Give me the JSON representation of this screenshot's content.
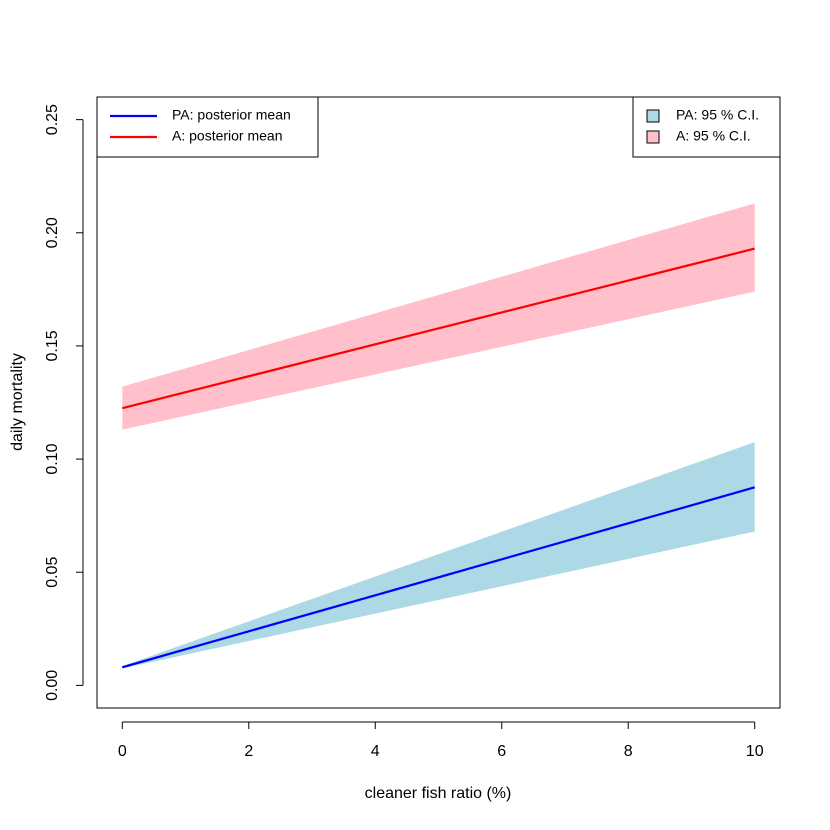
{
  "chart_data": {
    "type": "line",
    "xlabel": "cleaner fish ratio (%)",
    "ylabel": "daily mortality",
    "x": [
      0,
      2,
      4,
      6,
      8,
      10
    ],
    "series": [
      {
        "name": "PA: posterior mean",
        "color": "#0000ff",
        "values": [
          0.008,
          0.0239,
          0.0398,
          0.0557,
          0.0716,
          0.0875
        ]
      },
      {
        "name": "A: posterior mean",
        "color": "#ff0000",
        "values": [
          0.1225,
          0.1366,
          0.1507,
          0.1648,
          0.1789,
          0.193
        ]
      }
    ],
    "bands": [
      {
        "name": "PA: 95 % C.I.",
        "color": "#add8e6",
        "lower": [
          0.0075,
          0.0196,
          0.0317,
          0.0438,
          0.0559,
          0.068
        ],
        "upper": [
          0.0085,
          0.0283,
          0.0481,
          0.0679,
          0.0877,
          0.1075
        ]
      },
      {
        "name": "A: 95 % C.I.",
        "color": "#ffc0cb",
        "lower": [
          0.113,
          0.1252,
          0.1374,
          0.1496,
          0.1618,
          0.174
        ],
        "upper": [
          0.132,
          0.1482,
          0.1644,
          0.1806,
          0.1968,
          0.213
        ]
      }
    ],
    "xlim": [
      -0.4,
      10.4
    ],
    "ylim": [
      -0.01,
      0.26
    ],
    "xticks": [
      0,
      2,
      4,
      6,
      8,
      10
    ],
    "yticks": [
      {
        "value": 0,
        "label": "0.00"
      },
      {
        "value": 0.05,
        "label": "0.05"
      },
      {
        "value": 0.1,
        "label": "0.10"
      },
      {
        "value": 0.15,
        "label": "0.15"
      },
      {
        "value": 0.2,
        "label": "0.20"
      },
      {
        "value": 0.25,
        "label": "0.25"
      }
    ],
    "legend_lines": "topleft",
    "legend_bands": "topright"
  }
}
